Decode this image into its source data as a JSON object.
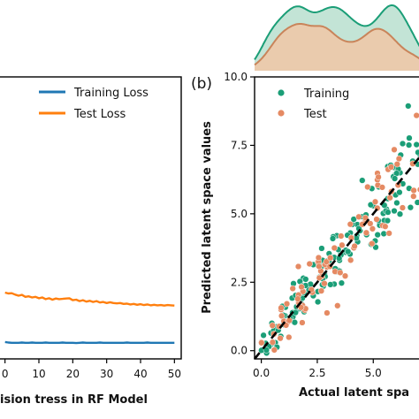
{
  "chart_data": [
    {
      "type": "line",
      "panel_label": "",
      "xlabel": "ision tress in RF Model",
      "ylabel": "",
      "xlim": [
        -2,
        52
      ],
      "ylim": [
        0,
        10
      ],
      "x_ticks": [
        0,
        10,
        20,
        30,
        40,
        50
      ],
      "x_tick_labels": [
        "0",
        "10",
        "20",
        "30",
        "40",
        "50"
      ],
      "grid": false,
      "legend_position": "top-right",
      "series": [
        {
          "name": "Training Loss",
          "color": "#1f77b4",
          "x": [
            0,
            1,
            2,
            3,
            4,
            5,
            6,
            7,
            8,
            9,
            10,
            11,
            12,
            13,
            14,
            15,
            16,
            17,
            18,
            19,
            20,
            21,
            22,
            23,
            24,
            25,
            26,
            27,
            28,
            29,
            30,
            31,
            32,
            33,
            34,
            35,
            36,
            37,
            38,
            39,
            40,
            41,
            42,
            43,
            44,
            45,
            46,
            47,
            48,
            49,
            50
          ],
          "y": [
            0.6,
            0.58,
            0.57,
            0.57,
            0.57,
            0.58,
            0.57,
            0.57,
            0.58,
            0.57,
            0.57,
            0.57,
            0.58,
            0.57,
            0.57,
            0.57,
            0.57,
            0.58,
            0.57,
            0.57,
            0.57,
            0.56,
            0.57,
            0.58,
            0.57,
            0.57,
            0.57,
            0.57,
            0.58,
            0.57,
            0.57,
            0.57,
            0.57,
            0.57,
            0.57,
            0.57,
            0.58,
            0.57,
            0.57,
            0.57,
            0.57,
            0.57,
            0.58,
            0.57,
            0.57,
            0.57,
            0.57,
            0.57,
            0.57,
            0.57,
            0.57
          ]
        },
        {
          "name": "Test Loss",
          "color": "#ff7f0e",
          "x": [
            0,
            1,
            2,
            3,
            4,
            5,
            6,
            7,
            8,
            9,
            10,
            11,
            12,
            13,
            14,
            15,
            16,
            17,
            18,
            19,
            20,
            21,
            22,
            23,
            24,
            25,
            26,
            27,
            28,
            29,
            30,
            31,
            32,
            33,
            34,
            35,
            36,
            37,
            38,
            39,
            40,
            41,
            42,
            43,
            44,
            45,
            46,
            47,
            48,
            49,
            50
          ],
          "y": [
            2.35,
            2.32,
            2.33,
            2.28,
            2.24,
            2.27,
            2.2,
            2.22,
            2.18,
            2.2,
            2.15,
            2.18,
            2.12,
            2.15,
            2.1,
            2.14,
            2.12,
            2.13,
            2.14,
            2.15,
            2.08,
            2.1,
            2.05,
            2.08,
            2.03,
            2.06,
            2.02,
            2.05,
            2.0,
            2.02,
            1.98,
            2.01,
            1.98,
            1.97,
            1.98,
            1.95,
            1.96,
            1.93,
            1.95,
            1.92,
            1.94,
            1.91,
            1.93,
            1.9,
            1.92,
            1.9,
            1.91,
            1.89,
            1.91,
            1.9,
            1.89
          ]
        }
      ]
    },
    {
      "type": "scatter",
      "panel_label": "(b)",
      "xlabel": "Actual latent spa",
      "ylabel": "Predicted latent space values",
      "xlim": [
        -0.3,
        7.2
      ],
      "ylim": [
        -0.3,
        10.0
      ],
      "x_ticks": [
        0,
        2.5,
        5
      ],
      "x_tick_labels": [
        "0.0",
        "2.5",
        "5.0"
      ],
      "y_ticks": [
        0,
        2.5,
        5,
        7.5,
        10
      ],
      "y_tick_labels": [
        "0.0",
        "2.5",
        "5.0",
        "7.5",
        "10.0"
      ],
      "reference_line": {
        "style": "dashed",
        "color": "#000000",
        "x": [
          -0.3,
          7.2
        ],
        "y": [
          -0.3,
          7.2
        ]
      },
      "grid": false,
      "legend_position": "top-left",
      "series": [
        {
          "name": "Training",
          "color": "#1b9e77",
          "generator": {
            "n": 150,
            "seed": 7,
            "noise": 0.6
          }
        },
        {
          "name": "Test",
          "color": "#e58a63",
          "generator": {
            "n": 95,
            "seed": 21,
            "noise": 0.75
          }
        }
      ],
      "marginal_density": {
        "series": [
          {
            "name": "Training",
            "color": "#1b9e77",
            "fill": "#b9dfcf"
          },
          {
            "name": "Test",
            "color": "#c9845a",
            "fill": "#f1c7a6"
          }
        ]
      }
    }
  ]
}
